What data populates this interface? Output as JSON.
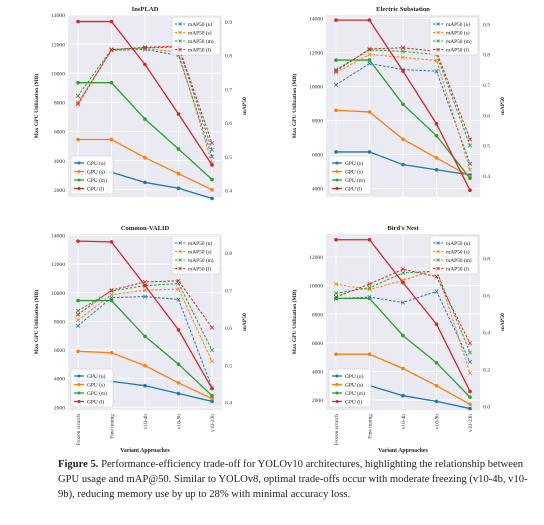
{
  "chart_data": [
    {
      "type": "line",
      "title": "InsPLAD",
      "categories": [],
      "ylabel": "Max GPU Utilization (MB)",
      "y2label": "mAP50",
      "ylim": [
        1500,
        14000
      ],
      "yticks": [
        2000,
        4000,
        6000,
        8000,
        10000,
        12000,
        14000
      ],
      "y2lim": [
        0.38,
        0.92
      ],
      "y2ticks": [
        0.4,
        0.5,
        0.6,
        0.7,
        0.8,
        0.9
      ],
      "gpu_series": [
        {
          "name": "GPU (n)",
          "color": "#1f77b4",
          "values": [
            3050,
            3200,
            2500,
            2100,
            1400
          ]
        },
        {
          "name": "GPU (s)",
          "color": "#ff7f0e",
          "values": [
            5450,
            5450,
            4200,
            3100,
            2000
          ]
        },
        {
          "name": "GPU (m)",
          "color": "#2ca02c",
          "values": [
            9350,
            9350,
            6850,
            4800,
            2700
          ]
        },
        {
          "name": "GPU (l)",
          "color": "#d62728",
          "values": [
            13550,
            13550,
            10600,
            7200,
            3700
          ]
        }
      ],
      "map_series": [
        {
          "name": "mAP50 (n)",
          "color": "#1f77b4",
          "values": [
            0.66,
            0.815,
            0.818,
            0.8,
            0.5
          ]
        },
        {
          "name": "mAP50 (s)",
          "color": "#ff7f0e",
          "values": [
            0.66,
            0.815,
            0.82,
            0.81,
            0.48
          ]
        },
        {
          "name": "mAP50 (m)",
          "color": "#2ca02c",
          "values": [
            0.68,
            0.818,
            0.822,
            0.825,
            0.52
          ]
        },
        {
          "name": "mAP50 (l)",
          "color": "#d62728",
          "values": [
            0.655,
            0.817,
            0.824,
            0.828,
            0.54
          ]
        }
      ]
    },
    {
      "type": "line",
      "title": "Electric Substation",
      "categories": [],
      "ylabel": "Max GPU Utilization (MB)",
      "y2label": "mAP50",
      "ylim": [
        3500,
        14200
      ],
      "yticks": [
        4000,
        6000,
        8000,
        10000,
        12000,
        14000
      ],
      "y2lim": [
        0.33,
        0.93
      ],
      "y2ticks": [
        0.4,
        0.5,
        0.6,
        0.7,
        0.8,
        0.9
      ],
      "gpu_series": [
        {
          "name": "GPU (n)",
          "color": "#1f77b4",
          "values": [
            6150,
            6150,
            5400,
            5100,
            4800
          ]
        },
        {
          "name": "GPU (s)",
          "color": "#ff7f0e",
          "values": [
            8600,
            8500,
            6900,
            5800,
            4700
          ]
        },
        {
          "name": "GPU (m)",
          "color": "#2ca02c",
          "values": [
            11550,
            11550,
            8950,
            7100,
            4600
          ]
        },
        {
          "name": "GPU (l)",
          "color": "#d62728",
          "values": [
            13900,
            13900,
            10900,
            7800,
            3900
          ]
        }
      ],
      "map_series": [
        {
          "name": "mAP50 (n)",
          "color": "#1f77b4",
          "values": [
            0.7,
            0.77,
            0.75,
            0.745,
            0.44
          ]
        },
        {
          "name": "mAP50 (s)",
          "color": "#ff7f0e",
          "values": [
            0.74,
            0.8,
            0.79,
            0.78,
            0.42
          ]
        },
        {
          "name": "mAP50 (m)",
          "color": "#2ca02c",
          "values": [
            0.75,
            0.815,
            0.81,
            0.8,
            0.5
          ]
        },
        {
          "name": "mAP50 (l)",
          "color": "#d62728",
          "values": [
            0.745,
            0.818,
            0.822,
            0.81,
            0.52
          ]
        }
      ]
    },
    {
      "type": "line",
      "title": "Common-VALID",
      "categories": [
        "Frozen scratch",
        "Fine tuning",
        "v10-4b",
        "v10-9b",
        "v10-23b"
      ],
      "ylabel": "Max GPU Utilization (MB)",
      "y2label": "mAP50",
      "ylim": [
        1800,
        14100
      ],
      "yticks": [
        2000,
        4000,
        6000,
        8000,
        10000,
        12000,
        14000
      ],
      "y2lim": [
        0.38,
        0.85
      ],
      "y2ticks": [
        0.4,
        0.5,
        0.6,
        0.7,
        0.8
      ],
      "gpu_series": [
        {
          "name": "GPU (n)",
          "color": "#1f77b4",
          "values": [
            3850,
            3800,
            3500,
            2950,
            2400
          ]
        },
        {
          "name": "GPU (s)",
          "color": "#ff7f0e",
          "values": [
            5900,
            5800,
            4900,
            3700,
            2600
          ]
        },
        {
          "name": "GPU (m)",
          "color": "#2ca02c",
          "values": [
            9450,
            9450,
            6950,
            5000,
            2800
          ]
        },
        {
          "name": "GPU (l)",
          "color": "#d62728",
          "values": [
            13600,
            13550,
            10500,
            7400,
            3300
          ]
        }
      ],
      "map_series": [
        {
          "name": "mAP50 (n)",
          "color": "#1f77b4",
          "values": [
            0.605,
            0.68,
            0.683,
            0.675,
            0.44
          ]
        },
        {
          "name": "mAP50 (s)",
          "color": "#ff7f0e",
          "values": [
            0.62,
            0.688,
            0.7,
            0.703,
            0.51
          ]
        },
        {
          "name": "mAP50 (m)",
          "color": "#2ca02c",
          "values": [
            0.645,
            0.698,
            0.712,
            0.718,
            0.54
          ]
        },
        {
          "name": "mAP50 (l)",
          "color": "#d62728",
          "values": [
            0.635,
            0.7,
            0.722,
            0.725,
            0.6
          ]
        }
      ]
    },
    {
      "type": "line",
      "title": "Bird's Nest",
      "categories": [
        "Frozen scratch",
        "Fine tuning",
        "v10-4b",
        "v10-9b",
        "v10-23b"
      ],
      "ylabel": "Max GPU Utilization (MB)",
      "y2label": "mAP50",
      "ylim": [
        1300,
        13600
      ],
      "yticks": [
        2000,
        4000,
        6000,
        8000,
        10000,
        12000
      ],
      "y2lim": [
        -0.02,
        0.93
      ],
      "y2ticks": [
        0.0,
        0.2,
        0.4,
        0.6,
        0.8
      ],
      "gpu_series": [
        {
          "name": "GPU (n)",
          "color": "#1f77b4",
          "values": [
            3000,
            3000,
            2300,
            1900,
            1400
          ]
        },
        {
          "name": "GPU (s)",
          "color": "#ff7f0e",
          "values": [
            5200,
            5200,
            4200,
            3000,
            1700
          ]
        },
        {
          "name": "GPU (m)",
          "color": "#2ca02c",
          "values": [
            9100,
            9100,
            6500,
            4600,
            2200
          ]
        },
        {
          "name": "GPU (l)",
          "color": "#d62728",
          "values": [
            13200,
            13200,
            10200,
            7300,
            2600
          ]
        }
      ],
      "map_series": [
        {
          "name": "mAP50 (n)",
          "color": "#1f77b4",
          "values": [
            0.58,
            0.59,
            0.56,
            0.62,
            0.24
          ]
        },
        {
          "name": "mAP50 (s)",
          "color": "#ff7f0e",
          "values": [
            0.66,
            0.63,
            0.68,
            0.74,
            0.18
          ]
        },
        {
          "name": "mAP50 (m)",
          "color": "#2ca02c",
          "values": [
            0.61,
            0.64,
            0.72,
            0.73,
            0.29
          ]
        },
        {
          "name": "mAP50 (l)",
          "color": "#d62728",
          "values": [
            0.59,
            0.66,
            0.74,
            0.7,
            0.34
          ]
        }
      ]
    }
  ],
  "shared": {
    "xlabel": "Variant Approaches"
  },
  "caption": {
    "label": "Figure 5.",
    "text": " Performance-efficiency trade-off for YOLOv10 architectures, highlighting the relationship between GPU usage and mAP@50. Similar to YOLOv8, optimal trade-offs occur with moderate freezing (v10-4b, v10-9b), reducing memory use by up to 28% with minimal accuracy loss."
  }
}
